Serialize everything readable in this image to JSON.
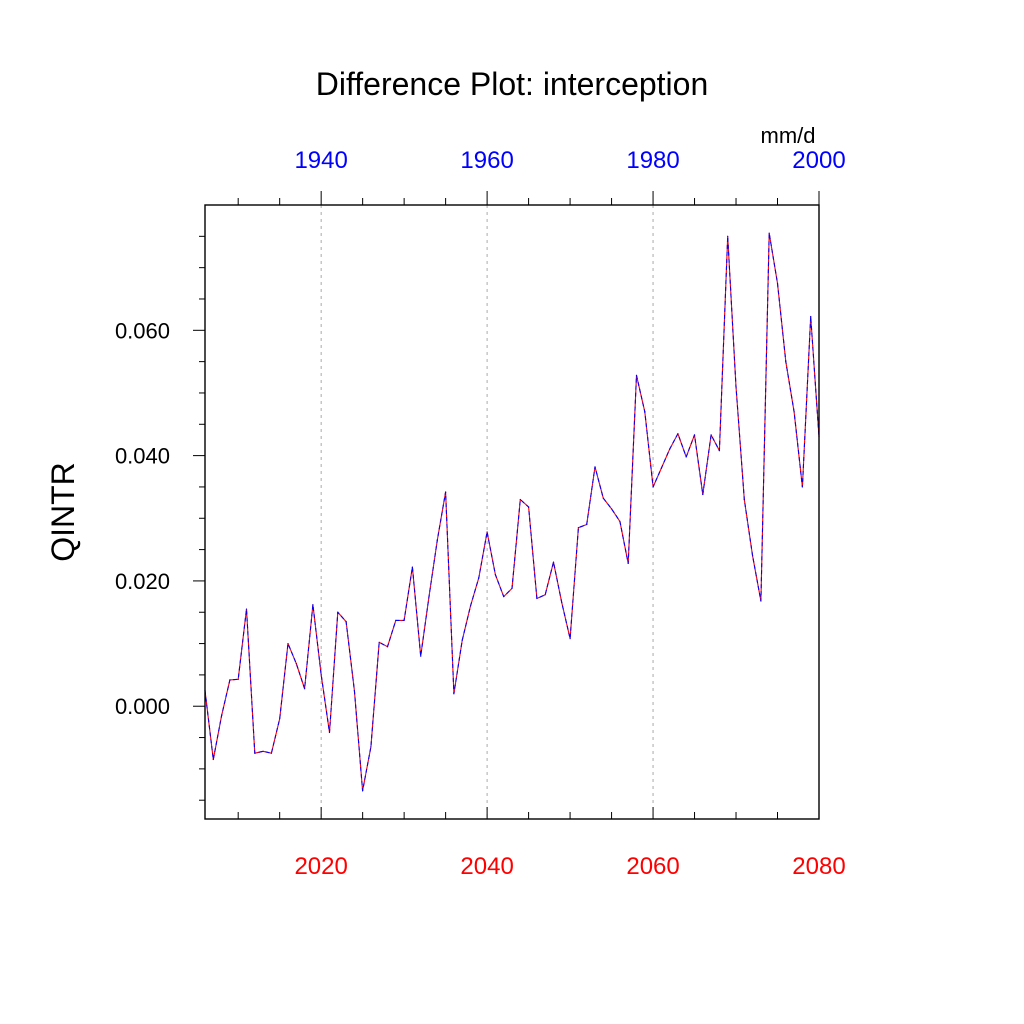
{
  "chart_data": {
    "type": "line",
    "title": "Difference Plot: interception",
    "units": "mm/d",
    "ylabel": "QINTR",
    "xlabel": "",
    "xlim": [
      2006,
      2080
    ],
    "ylim": [
      -0.018,
      0.08
    ],
    "y_ticks": [
      {
        "value": 0.0,
        "label": "0.000"
      },
      {
        "value": 0.02,
        "label": "0.020"
      },
      {
        "value": 0.04,
        "label": "0.040"
      },
      {
        "value": 0.06,
        "label": "0.060"
      }
    ],
    "x_ticks_bottom": [
      {
        "value": 2020,
        "label": "2020"
      },
      {
        "value": 2040,
        "label": "2040"
      },
      {
        "value": 2060,
        "label": "2060"
      },
      {
        "value": 2080,
        "label": "2080"
      }
    ],
    "top_axis": {
      "offset_years": -80
    },
    "x_ticks_top": [
      {
        "value": 1940,
        "label": "1940"
      },
      {
        "value": 1960,
        "label": "1960"
      },
      {
        "value": 1980,
        "label": "1980"
      },
      {
        "value": 2000,
        "label": "2000"
      }
    ],
    "grid": "vertical dashed",
    "colors": {
      "bottom_axis_labels": "#ff0000",
      "top_axis_labels": "#0000ff",
      "series_line_1": "#ff0000",
      "series_line_2": "#0000ff",
      "gridline": "#aaaaaa"
    },
    "series": [
      {
        "x": [
          2006,
          2007,
          2008,
          2009,
          2010,
          2011,
          2012,
          2013,
          2014,
          2015,
          2016,
          2017,
          2018,
          2019,
          2020,
          2021,
          2022,
          2023,
          2024,
          2025,
          2026,
          2027,
          2028,
          2029,
          2030,
          2031,
          2032,
          2033,
          2034,
          2035,
          2036,
          2037,
          2038,
          2039,
          2040,
          2041,
          2042,
          2043,
          2044,
          2045,
          2046,
          2047,
          2048,
          2049,
          2050,
          2051,
          2052,
          2053,
          2054,
          2055,
          2056,
          2057,
          2058,
          2059,
          2060,
          2061,
          2062,
          2063,
          2064,
          2065,
          2066,
          2067,
          2068,
          2069,
          2070,
          2071,
          2072,
          2073,
          2074,
          2075,
          2076,
          2077,
          2078,
          2079,
          2080
        ],
        "values": [
          0.0025,
          -0.0085,
          -0.0015,
          0.0042,
          0.0043,
          0.0155,
          -0.0075,
          -0.0072,
          -0.0075,
          -0.002,
          0.01,
          0.0068,
          0.0028,
          0.0162,
          0.005,
          -0.0042,
          0.015,
          0.0135,
          0.0025,
          -0.0135,
          -0.0065,
          0.0102,
          0.0095,
          0.0137,
          0.0137,
          0.0222,
          0.008,
          0.0175,
          0.0265,
          0.0342,
          0.002,
          0.0105,
          0.016,
          0.0205,
          0.0278,
          0.021,
          0.0175,
          0.0188,
          0.033,
          0.0318,
          0.0172,
          0.0178,
          0.023,
          0.0165,
          0.0108,
          0.0285,
          0.029,
          0.0382,
          0.0332,
          0.0315,
          0.0295,
          0.0228,
          0.0528,
          0.047,
          0.035,
          0.038,
          0.041,
          0.0435,
          0.0398,
          0.0433,
          0.0338,
          0.0433,
          0.0408,
          0.075,
          0.051,
          0.033,
          0.024,
          0.0168,
          0.0755,
          0.0675,
          0.055,
          0.047,
          0.035,
          0.0622,
          0.043
        ]
      }
    ]
  }
}
